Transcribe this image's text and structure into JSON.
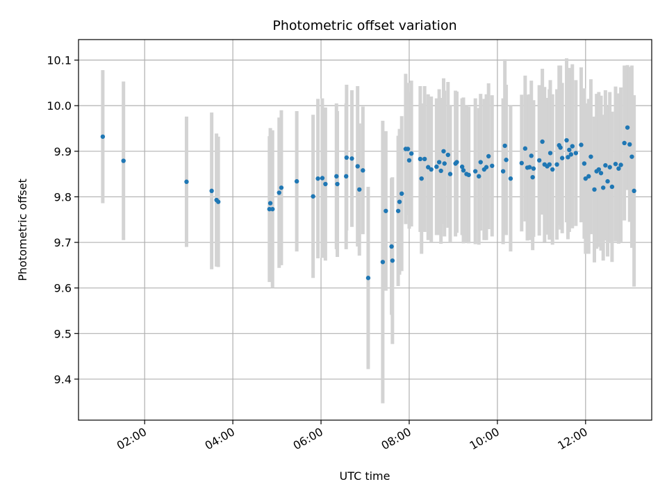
{
  "chart_data": {
    "type": "scatter",
    "title": "Photometric offset variation",
    "xlabel": "UTC time",
    "ylabel": "Photometric offset",
    "x_unit": "hours UTC",
    "xlim": [
      0.5,
      13.5
    ],
    "ylim": [
      9.31,
      10.145
    ],
    "x_ticks": [
      2,
      4,
      6,
      8,
      10,
      12
    ],
    "x_tick_labels": [
      "02:00",
      "04:00",
      "06:00",
      "08:00",
      "10:00",
      "12:00"
    ],
    "y_ticks": [
      9.4,
      9.5,
      9.6,
      9.7,
      9.8,
      9.9,
      10.0,
      10.1
    ],
    "y_tick_labels": [
      "9.4",
      "9.5",
      "9.6",
      "9.7",
      "9.8",
      "9.9",
      "10.0",
      "10.1"
    ],
    "grid": true,
    "marker_color": "#1f77b4",
    "errorbar_color": "#d3d3d3",
    "points": [
      [
        1.05,
        9.932,
        0.146
      ],
      [
        1.52,
        9.879,
        0.174
      ],
      [
        2.95,
        9.833,
        0.143
      ],
      [
        3.52,
        9.813,
        0.172
      ],
      [
        3.63,
        9.793,
        0.146
      ],
      [
        3.67,
        9.789,
        0.143
      ],
      [
        4.83,
        9.773,
        0.16
      ],
      [
        4.85,
        9.786,
        0.165
      ],
      [
        4.9,
        9.773,
        0.173
      ],
      [
        5.05,
        9.809,
        0.165
      ],
      [
        5.1,
        9.82,
        0.17
      ],
      [
        5.45,
        9.834,
        0.154
      ],
      [
        5.82,
        9.801,
        0.179
      ],
      [
        5.93,
        9.84,
        0.175
      ],
      [
        6.03,
        9.841,
        0.175
      ],
      [
        6.1,
        9.828,
        0.168
      ],
      [
        6.35,
        9.845,
        0.16
      ],
      [
        6.37,
        9.828,
        0.16
      ],
      [
        6.57,
        9.845,
        0.16
      ],
      [
        6.58,
        9.886,
        0.16
      ],
      [
        6.7,
        9.884,
        0.15
      ],
      [
        6.83,
        9.867,
        0.176
      ],
      [
        6.87,
        9.816,
        0.145
      ],
      [
        6.95,
        9.858,
        0.14
      ],
      [
        7.07,
        9.622,
        0.2
      ],
      [
        7.4,
        9.657,
        0.31
      ],
      [
        7.47,
        9.769,
        0.175
      ],
      [
        7.6,
        9.691,
        0.15
      ],
      [
        7.62,
        9.66,
        0.183
      ],
      [
        7.75,
        9.769,
        0.165
      ],
      [
        7.78,
        9.789,
        0.16
      ],
      [
        7.83,
        9.807,
        0.17
      ],
      [
        7.92,
        9.905,
        0.165
      ],
      [
        7.97,
        9.905,
        0.145
      ],
      [
        8.0,
        9.88,
        0.15
      ],
      [
        8.05,
        9.895,
        0.16
      ],
      [
        8.25,
        9.883,
        0.16
      ],
      [
        8.28,
        9.84,
        0.165
      ],
      [
        8.35,
        9.883,
        0.16
      ],
      [
        8.43,
        9.865,
        0.16
      ],
      [
        8.5,
        9.86,
        0.16
      ],
      [
        8.62,
        9.866,
        0.15
      ],
      [
        8.68,
        9.876,
        0.16
      ],
      [
        8.72,
        9.857,
        0.16
      ],
      [
        8.78,
        9.9,
        0.16
      ],
      [
        8.8,
        9.873,
        0.16
      ],
      [
        8.88,
        9.892,
        0.16
      ],
      [
        8.93,
        9.85,
        0.15
      ],
      [
        9.05,
        9.873,
        0.16
      ],
      [
        9.08,
        9.876,
        0.155
      ],
      [
        9.2,
        9.866,
        0.15
      ],
      [
        9.23,
        9.858,
        0.16
      ],
      [
        9.3,
        9.85,
        0.15
      ],
      [
        9.35,
        9.848,
        0.15
      ],
      [
        9.5,
        9.856,
        0.16
      ],
      [
        9.58,
        9.845,
        0.15
      ],
      [
        9.62,
        9.876,
        0.15
      ],
      [
        9.7,
        9.86,
        0.155
      ],
      [
        9.75,
        9.865,
        0.16
      ],
      [
        9.8,
        9.889,
        0.16
      ],
      [
        9.88,
        9.868,
        0.155
      ],
      [
        10.13,
        9.856,
        0.16
      ],
      [
        10.17,
        9.912,
        0.19
      ],
      [
        10.2,
        9.881,
        0.165
      ],
      [
        10.3,
        9.84,
        0.16
      ],
      [
        10.55,
        9.874,
        0.15
      ],
      [
        10.63,
        9.906,
        0.16
      ],
      [
        10.68,
        9.864,
        0.16
      ],
      [
        10.73,
        9.865,
        0.16
      ],
      [
        10.77,
        9.89,
        0.165
      ],
      [
        10.8,
        9.843,
        0.16
      ],
      [
        10.82,
        9.862,
        0.15
      ],
      [
        10.95,
        9.88,
        0.165
      ],
      [
        11.02,
        9.921,
        0.16
      ],
      [
        11.07,
        9.871,
        0.17
      ],
      [
        11.13,
        9.867,
        0.15
      ],
      [
        11.18,
        9.871,
        0.165
      ],
      [
        11.2,
        9.896,
        0.16
      ],
      [
        11.25,
        9.86,
        0.165
      ],
      [
        11.35,
        9.871,
        0.165
      ],
      [
        11.4,
        9.913,
        0.175
      ],
      [
        11.43,
        9.908,
        0.18
      ],
      [
        11.47,
        9.885,
        0.165
      ],
      [
        11.57,
        9.924,
        0.18
      ],
      [
        11.6,
        9.887,
        0.18
      ],
      [
        11.63,
        9.903,
        0.18
      ],
      [
        11.67,
        9.893,
        0.16
      ],
      [
        11.7,
        9.911,
        0.18
      ],
      [
        11.78,
        9.896,
        0.16
      ],
      [
        11.9,
        9.914,
        0.17
      ],
      [
        11.97,
        9.873,
        0.165
      ],
      [
        12.0,
        9.84,
        0.165
      ],
      [
        12.07,
        9.845,
        0.17
      ],
      [
        12.12,
        9.888,
        0.17
      ],
      [
        12.2,
        9.816,
        0.16
      ],
      [
        12.25,
        9.856,
        0.17
      ],
      [
        12.3,
        9.86,
        0.17
      ],
      [
        12.35,
        9.852,
        0.17
      ],
      [
        12.4,
        9.82,
        0.16
      ],
      [
        12.45,
        9.869,
        0.165
      ],
      [
        12.5,
        9.834,
        0.165
      ],
      [
        12.55,
        9.865,
        0.165
      ],
      [
        12.6,
        9.822,
        0.165
      ],
      [
        12.68,
        9.872,
        0.17
      ],
      [
        12.75,
        9.862,
        0.165
      ],
      [
        12.8,
        9.87,
        0.17
      ],
      [
        12.88,
        9.918,
        0.17
      ],
      [
        12.95,
        9.952,
        0.137
      ],
      [
        13.0,
        9.915,
        0.17
      ],
      [
        13.05,
        9.888,
        0.2
      ],
      [
        13.1,
        9.813,
        0.21
      ]
    ]
  }
}
